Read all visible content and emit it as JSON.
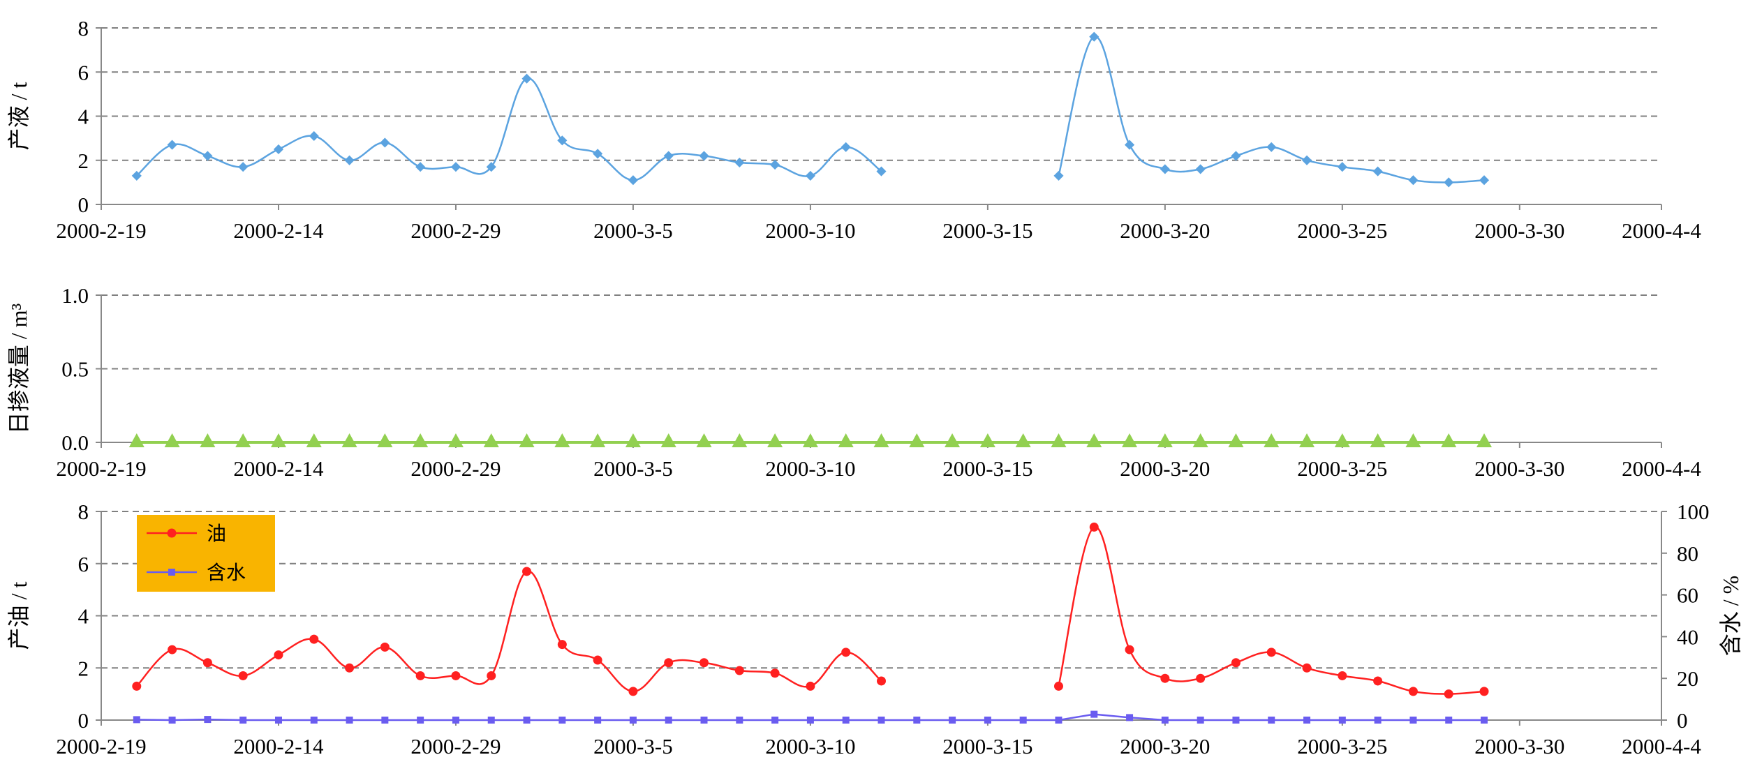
{
  "chart_data": [
    {
      "type": "line",
      "ylabel": "产液 / t",
      "ylim": [
        0,
        8
      ],
      "yticks": [
        "0",
        "2",
        "4",
        "6",
        "8"
      ],
      "xticks": [
        "2000-2-19",
        "2000-2-14",
        "2000-2-29",
        "2000-3-5",
        "2000-3-10",
        "2000-3-15",
        "2000-3-20",
        "2000-3-25",
        "2000-3-30",
        "2000-4-4"
      ],
      "grid": true,
      "colors": {
        "liquid": "#5ba3e0",
        "grid": "#7f7f7f"
      },
      "series": [
        {
          "values": [
            [
              1,
              1.3
            ],
            [
              2,
              2.7
            ],
            [
              3,
              2.2
            ],
            [
              4,
              1.7
            ],
            [
              5,
              2.5
            ],
            [
              6,
              3.1
            ],
            [
              7,
              2.0
            ],
            [
              8,
              2.8
            ],
            [
              9,
              1.7
            ],
            [
              10,
              1.7
            ],
            [
              11,
              1.7
            ],
            [
              12,
              5.7
            ],
            [
              13,
              2.9
            ],
            [
              14,
              2.3
            ],
            [
              15,
              1.1
            ],
            [
              16,
              2.2
            ],
            [
              17,
              2.2
            ],
            [
              18,
              1.9
            ],
            [
              19,
              1.8
            ],
            [
              20,
              1.3
            ],
            [
              21,
              2.6
            ],
            [
              22,
              1.5
            ],
            null,
            null,
            null,
            null,
            [
              27,
              1.3
            ],
            [
              28,
              7.6
            ],
            [
              29,
              2.7
            ],
            [
              30,
              1.6
            ],
            [
              31,
              1.6
            ],
            [
              32,
              2.2
            ],
            [
              33,
              2.6
            ],
            [
              34,
              2.0
            ],
            [
              35,
              1.7
            ],
            [
              36,
              1.5
            ],
            [
              37,
              1.1
            ],
            [
              38,
              1.0
            ],
            [
              39,
              1.1
            ]
          ]
        }
      ]
    },
    {
      "type": "line",
      "ylabel": "日掺液量 / m³",
      "ylim": [
        0,
        1.0
      ],
      "yticks": [
        "0.0",
        "0.5",
        "1.0"
      ],
      "xticks": [
        "2000-2-19",
        "2000-2-14",
        "2000-2-29",
        "2000-3-5",
        "2000-3-10",
        "2000-3-15",
        "2000-3-20",
        "2000-3-25",
        "2000-3-30",
        "2000-4-4"
      ],
      "grid": true,
      "colors": {
        "blend": "#92d050"
      },
      "series": [
        {
          "x_start": 1,
          "x_end": 39,
          "value": 0
        }
      ]
    },
    {
      "type": "line",
      "ylabel": "产油 / t",
      "y2label": "含水 / %",
      "ylim": [
        0,
        8
      ],
      "y2lim": [
        0,
        100
      ],
      "yticks": [
        "0",
        "2",
        "4",
        "6",
        "8"
      ],
      "y2ticks": [
        "0",
        "20",
        "40",
        "60",
        "80",
        "100"
      ],
      "xticks": [
        "2000-2-19",
        "2000-2-14",
        "2000-2-29",
        "2000-3-5",
        "2000-3-10",
        "2000-3-15",
        "2000-3-20",
        "2000-3-25",
        "2000-3-30",
        "2000-4-4"
      ],
      "grid": true,
      "legend": {
        "position": "top-left",
        "background": "#f9b400",
        "oil_label": "油",
        "water_label": "含水"
      },
      "colors": {
        "oil": "#ff2020",
        "water": "#6a5cf0"
      },
      "oil_values": [
        [
          1,
          1.3
        ],
        [
          2,
          2.7
        ],
        [
          3,
          2.2
        ],
        [
          4,
          1.7
        ],
        [
          5,
          2.5
        ],
        [
          6,
          3.1
        ],
        [
          7,
          2.0
        ],
        [
          8,
          2.8
        ],
        [
          9,
          1.7
        ],
        [
          10,
          1.7
        ],
        [
          11,
          1.7
        ],
        [
          12,
          5.7
        ],
        [
          13,
          2.9
        ],
        [
          14,
          2.3
        ],
        [
          15,
          1.1
        ],
        [
          16,
          2.2
        ],
        [
          17,
          2.2
        ],
        [
          18,
          1.9
        ],
        [
          19,
          1.8
        ],
        [
          20,
          1.3
        ],
        [
          21,
          2.6
        ],
        [
          22,
          1.5
        ],
        null,
        null,
        null,
        null,
        [
          27,
          1.3
        ],
        [
          28,
          7.4
        ],
        [
          29,
          2.7
        ],
        [
          30,
          1.6
        ],
        [
          31,
          1.6
        ],
        [
          32,
          2.2
        ],
        [
          33,
          2.6
        ],
        [
          34,
          2.0
        ],
        [
          35,
          1.7
        ],
        [
          36,
          1.5
        ],
        [
          37,
          1.1
        ],
        [
          38,
          1.0
        ],
        [
          39,
          1.1
        ]
      ],
      "water_values": [
        [
          1,
          0.2
        ],
        [
          2,
          0
        ],
        [
          3,
          0.3
        ],
        [
          4,
          0
        ],
        [
          5,
          0
        ],
        [
          6,
          0
        ],
        [
          7,
          0
        ],
        [
          8,
          0
        ],
        [
          9,
          0
        ],
        [
          10,
          0
        ],
        [
          11,
          0
        ],
        [
          12,
          0
        ],
        [
          13,
          0
        ],
        [
          14,
          0
        ],
        [
          15,
          0
        ],
        [
          16,
          0
        ],
        [
          17,
          0
        ],
        [
          18,
          0
        ],
        [
          19,
          0
        ],
        [
          20,
          0
        ],
        [
          21,
          0
        ],
        [
          22,
          0
        ],
        [
          23,
          0
        ],
        [
          24,
          0
        ],
        [
          25,
          0
        ],
        [
          26,
          0
        ],
        [
          27,
          0
        ],
        [
          28,
          2.8
        ],
        [
          29,
          1.2
        ],
        [
          30,
          0
        ],
        [
          31,
          0
        ],
        [
          32,
          0
        ],
        [
          33,
          0
        ],
        [
          34,
          0
        ],
        [
          35,
          0
        ],
        [
          36,
          0
        ],
        [
          37,
          0
        ],
        [
          38,
          0
        ],
        [
          39,
          0
        ]
      ]
    }
  ]
}
